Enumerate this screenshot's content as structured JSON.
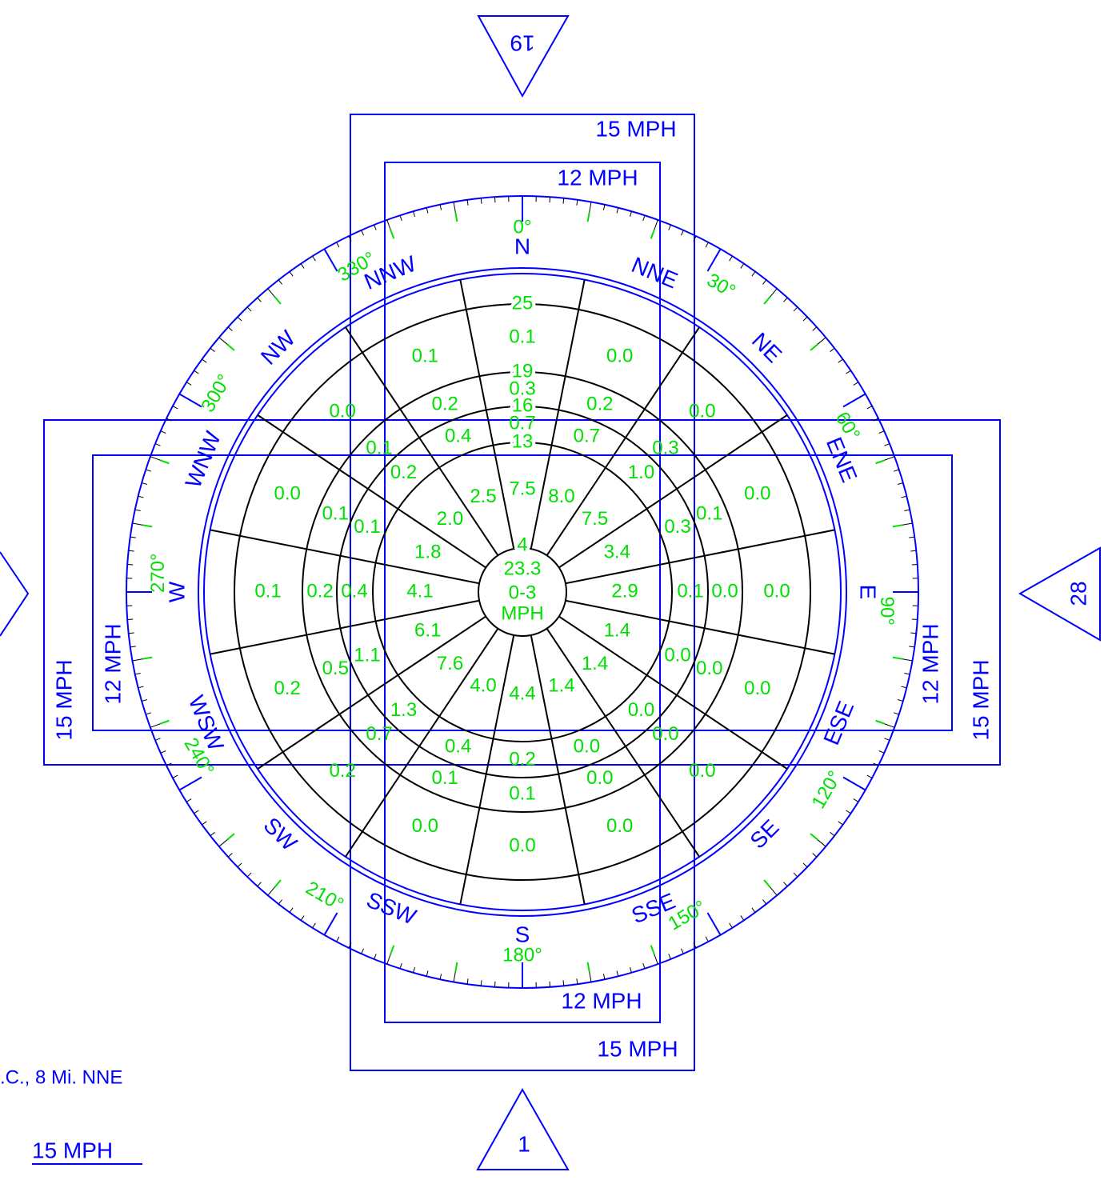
{
  "center": {
    "ring": "4",
    "calm": "23.3",
    "range": "0-3",
    "unit": "MPH"
  },
  "rings": [
    "13",
    "16",
    "19",
    "25"
  ],
  "sectors": [
    {
      "direction": "N",
      "values": [
        "7.5",
        "0.7",
        "0.3",
        "0.1"
      ]
    },
    {
      "direction": "NNE",
      "values": [
        "8.0",
        "0.7",
        "0.2",
        "0.0"
      ]
    },
    {
      "direction": "NE",
      "values": [
        "7.5",
        "1.0",
        "0.3",
        "0.0"
      ]
    },
    {
      "direction": "ENE",
      "values": [
        "3.4",
        "0.3",
        "0.1",
        "0.0"
      ]
    },
    {
      "direction": "E",
      "values": [
        "2.9",
        "0.1",
        "0.0",
        "0.0"
      ]
    },
    {
      "direction": "ESE",
      "values": [
        "1.4",
        "0.0",
        "0.0",
        "0.0"
      ]
    },
    {
      "direction": "SE",
      "values": [
        "1.4",
        "0.0",
        "0.0",
        "0.0"
      ]
    },
    {
      "direction": "SSE",
      "values": [
        "1.4",
        "0.0",
        "0.0",
        "0.0"
      ]
    },
    {
      "direction": "S",
      "values": [
        "4.4",
        "0.2",
        "0.1",
        "0.0"
      ]
    },
    {
      "direction": "SSW",
      "values": [
        "4.0",
        "0.4",
        "0.1",
        "0.0"
      ]
    },
    {
      "direction": "SW",
      "values": [
        "7.6",
        "1.3",
        "0.7",
        "0.2"
      ]
    },
    {
      "direction": "WSW",
      "values": [
        "6.1",
        "1.1",
        "0.5",
        "0.2"
      ]
    },
    {
      "direction": "W",
      "values": [
        "4.1",
        "0.4",
        "0.2",
        "0.1"
      ]
    },
    {
      "direction": "WNW",
      "values": [
        "1.8",
        "0.1",
        "0.1",
        "0.0"
      ]
    },
    {
      "direction": "NW",
      "values": [
        "2.0",
        "0.2",
        "0.1",
        "0.0"
      ]
    },
    {
      "direction": "NNW",
      "values": [
        "2.5",
        "0.4",
        "0.2",
        "0.1"
      ]
    }
  ],
  "degrees": [
    "0°",
    "30°",
    "60°",
    "90°",
    "120°",
    "150°",
    "180°",
    "210°",
    "240°",
    "270°",
    "300°",
    "330°"
  ],
  "zones": [
    "15 MPH",
    "12 MPH"
  ],
  "runways": [
    "19",
    "28",
    "1"
  ],
  "footer": {
    "location": ".C., 8 Mi. NNE",
    "legend": "15 MPH"
  }
}
